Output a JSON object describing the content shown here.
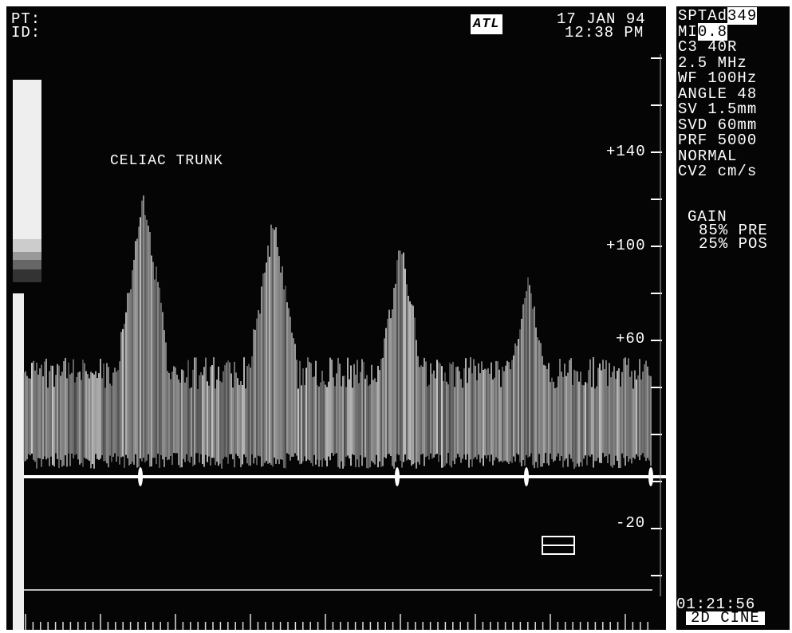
{
  "header": {
    "patient": "PT:",
    "id": "ID:",
    "logo": "ATL",
    "date": "17 JAN 94",
    "time": "12:38 PM"
  },
  "annotation": "CELIAC TRUNK",
  "settings": [
    {
      "label": "SPTAd",
      "value": "349"
    },
    {
      "label": "MI",
      "value": "0.8"
    },
    "C3 40R",
    "2.5 MHz",
    "WF 100Hz",
    "ANGLE 48",
    "SV 1.5mm",
    "SVD 60mm",
    "PRF 5000",
    "NORMAL",
    "CV2 cm/s"
  ],
  "gain": {
    "title": "GAIN",
    "lines": [
      "85% PRE",
      "25% POS"
    ]
  },
  "velocity_scale": [
    "+140",
    "+100",
    "+60",
    "-20"
  ],
  "footer": {
    "clock": "01:21:56",
    "mode": "2D CINE"
  }
}
